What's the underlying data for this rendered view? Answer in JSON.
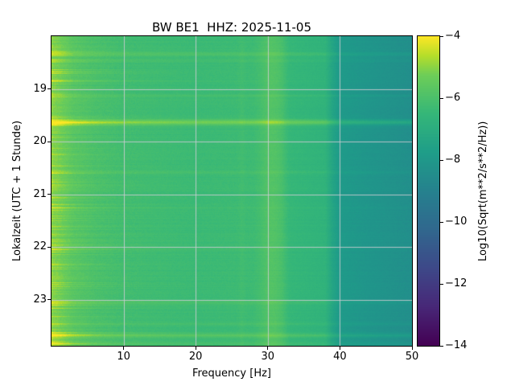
{
  "chart_data": {
    "type": "heatmap",
    "title": "BW BE1  HHZ: 2025-11-05",
    "xlabel": "Frequency [Hz]",
    "ylabel": "Lokalzeit (UTC + 1 Stunde)",
    "x_range": [
      0,
      50
    ],
    "x_ticks": [
      10,
      20,
      30,
      40,
      50
    ],
    "y_range": [
      18.0,
      23.87
    ],
    "y_ticks": [
      19,
      20,
      21,
      22,
      23
    ],
    "grid": true,
    "colormap": "viridis",
    "colorbar": {
      "label": "Log10(Sqrt(m**2/s**2/Hz))",
      "range": [
        -14,
        -4
      ],
      "ticks": [
        -4,
        -6,
        -8,
        -10,
        -12,
        -14
      ]
    },
    "base_profile": [
      [
        0,
        -5.0
      ],
      [
        1,
        -5.2
      ],
      [
        3,
        -5.7
      ],
      [
        6,
        -6.0
      ],
      [
        10,
        -6.2
      ],
      [
        20,
        -6.35
      ],
      [
        28,
        -6.3
      ],
      [
        30,
        -6.05
      ],
      [
        32,
        -6.2
      ],
      [
        33,
        -6.5
      ],
      [
        38,
        -6.7
      ],
      [
        39,
        -7.4
      ],
      [
        40,
        -7.9
      ],
      [
        45,
        -8.15
      ],
      [
        50,
        -8.4
      ]
    ],
    "vertical_bands": [
      {
        "freq": 30.8,
        "amp": 0.28,
        "sigma": 1.0
      },
      {
        "freq": 26.4,
        "amp": 0.1,
        "sigma": 0.3
      }
    ],
    "events": [
      {
        "time": 18.33,
        "amp": 0.5,
        "sigma": 0.025,
        "lf": 0.35
      },
      {
        "time": 18.46,
        "amp": 0.25,
        "sigma": 0.018,
        "lf": 0.2
      },
      {
        "time": 19.12,
        "amp": 0.28,
        "sigma": 0.02,
        "lf": 0.3
      },
      {
        "time": 19.63,
        "amp": 1.4,
        "sigma": 0.035,
        "lf": 0.3
      },
      {
        "time": 20.58,
        "amp": 0.28,
        "sigma": 0.02,
        "lf": 0.25
      },
      {
        "time": 21.25,
        "amp": 0.15,
        "sigma": 0.015,
        "lf": 0.2
      },
      {
        "time": 22.03,
        "amp": 0.2,
        "sigma": 0.018,
        "lf": 0.2
      },
      {
        "time": 23.05,
        "amp": 0.4,
        "sigma": 0.025,
        "lf": 0.3
      },
      {
        "time": 23.46,
        "amp": 0.3,
        "sigma": 0.018,
        "lf": 0.25
      },
      {
        "time": 23.68,
        "amp": 0.75,
        "sigma": 0.03,
        "lf": 0.5
      },
      {
        "time": 23.83,
        "amp": 0.25,
        "sigma": 0.03,
        "lf": 0.6
      }
    ],
    "noise_seed": 42
  }
}
